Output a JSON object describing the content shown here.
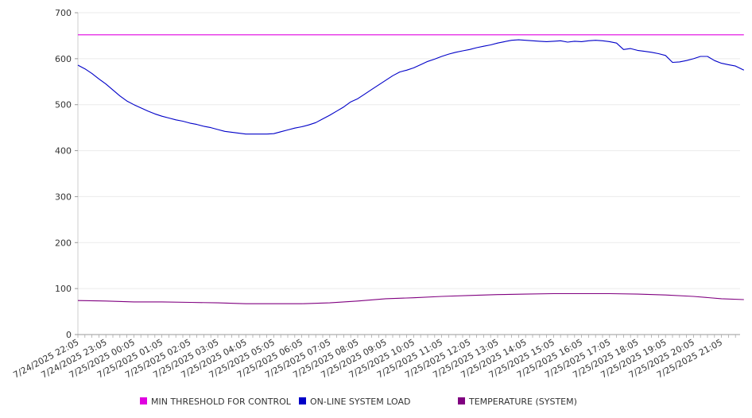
{
  "chart_data": {
    "type": "line",
    "title": "",
    "xlabel": "",
    "ylabel": "",
    "ylim": [
      0,
      700
    ],
    "yticks": [
      0,
      100,
      200,
      300,
      400,
      500,
      600,
      700
    ],
    "grid": true,
    "legend_position": "bottom",
    "x_labels": [
      "7/24/2025 22:05",
      "7/24/2025 23:05",
      "7/25/2025 00:05",
      "7/25/2025 01:05",
      "7/25/2025 02:05",
      "7/25/2025 03:05",
      "7/25/2025 04:05",
      "7/25/2025 05:05",
      "7/25/2025 06:05",
      "7/25/2025 07:05",
      "7/25/2025 08:05",
      "7/25/2025 09:05",
      "7/25/2025 10:05",
      "7/25/2025 11:05",
      "7/25/2025 12:05",
      "7/25/2025 13:05",
      "7/25/2025 14:05",
      "7/25/2025 15:05",
      "7/25/2025 16:05",
      "7/25/2025 17:05",
      "7/25/2025 18:05",
      "7/25/2025 19:05",
      "7/25/2025 20:05",
      "7/25/2025 21:05"
    ],
    "x_end_label_index": 23.8,
    "series": [
      {
        "name": "MIN THRESHOLD FOR CONTROL",
        "color": "#e000e0",
        "points": [
          [
            0,
            652
          ],
          [
            23.8,
            652
          ]
        ]
      },
      {
        "name": "ON-LINE SYSTEM LOAD",
        "color": "#0000c8",
        "points": [
          [
            0,
            586
          ],
          [
            0.25,
            578
          ],
          [
            0.5,
            568
          ],
          [
            0.75,
            556
          ],
          [
            1,
            545
          ],
          [
            1.25,
            532
          ],
          [
            1.5,
            519
          ],
          [
            1.75,
            508
          ],
          [
            2,
            500
          ],
          [
            2.25,
            493
          ],
          [
            2.5,
            486
          ],
          [
            2.75,
            480
          ],
          [
            3,
            475
          ],
          [
            3.25,
            471
          ],
          [
            3.5,
            467
          ],
          [
            3.75,
            464
          ],
          [
            4,
            460
          ],
          [
            4.25,
            457
          ],
          [
            4.5,
            453
          ],
          [
            4.75,
            450
          ],
          [
            5,
            446
          ],
          [
            5.25,
            442
          ],
          [
            5.5,
            440
          ],
          [
            5.75,
            438
          ],
          [
            6,
            436
          ],
          [
            6.25,
            436
          ],
          [
            6.5,
            436
          ],
          [
            6.75,
            436
          ],
          [
            7,
            437
          ],
          [
            7.25,
            441
          ],
          [
            7.5,
            445
          ],
          [
            7.75,
            449
          ],
          [
            8,
            452
          ],
          [
            8.25,
            456
          ],
          [
            8.5,
            461
          ],
          [
            8.75,
            469
          ],
          [
            9,
            477
          ],
          [
            9.25,
            486
          ],
          [
            9.5,
            495
          ],
          [
            9.75,
            506
          ],
          [
            10,
            513
          ],
          [
            10.25,
            523
          ],
          [
            10.5,
            533
          ],
          [
            10.75,
            543
          ],
          [
            11,
            553
          ],
          [
            11.25,
            563
          ],
          [
            11.5,
            571
          ],
          [
            11.75,
            575
          ],
          [
            12,
            580
          ],
          [
            12.25,
            587
          ],
          [
            12.5,
            594
          ],
          [
            12.75,
            599
          ],
          [
            13,
            605
          ],
          [
            13.25,
            610
          ],
          [
            13.5,
            614
          ],
          [
            13.75,
            617
          ],
          [
            14,
            620
          ],
          [
            14.25,
            624
          ],
          [
            14.5,
            627
          ],
          [
            14.75,
            630
          ],
          [
            15,
            634
          ],
          [
            15.25,
            637
          ],
          [
            15.5,
            640
          ],
          [
            15.75,
            641
          ],
          [
            16,
            640
          ],
          [
            16.25,
            639
          ],
          [
            16.5,
            638
          ],
          [
            16.75,
            637
          ],
          [
            17,
            638
          ],
          [
            17.25,
            639
          ],
          [
            17.5,
            636
          ],
          [
            17.75,
            638
          ],
          [
            18,
            637
          ],
          [
            18.25,
            639
          ],
          [
            18.5,
            640
          ],
          [
            18.75,
            639
          ],
          [
            19,
            637
          ],
          [
            19.25,
            634
          ],
          [
            19.5,
            620
          ],
          [
            19.75,
            622
          ],
          [
            20,
            618
          ],
          [
            20.25,
            616
          ],
          [
            20.5,
            614
          ],
          [
            20.75,
            611
          ],
          [
            21,
            607
          ],
          [
            21.25,
            592
          ],
          [
            21.5,
            593
          ],
          [
            21.75,
            596
          ],
          [
            22,
            600
          ],
          [
            22.25,
            605
          ],
          [
            22.5,
            605
          ],
          [
            22.75,
            596
          ],
          [
            23,
            590
          ],
          [
            23.25,
            587
          ],
          [
            23.5,
            584
          ],
          [
            23.8,
            575
          ]
        ]
      },
      {
        "name": "TEMPERATURE (SYSTEM)",
        "color": "#800080",
        "points": [
          [
            0,
            74
          ],
          [
            1,
            73
          ],
          [
            2,
            71
          ],
          [
            3,
            71
          ],
          [
            4,
            70
          ],
          [
            5,
            69
          ],
          [
            6,
            67
          ],
          [
            7,
            67
          ],
          [
            8,
            67
          ],
          [
            9,
            69
          ],
          [
            10,
            73
          ],
          [
            11,
            78
          ],
          [
            12,
            80
          ],
          [
            13,
            83
          ],
          [
            14,
            85
          ],
          [
            15,
            87
          ],
          [
            16,
            88
          ],
          [
            17,
            89
          ],
          [
            18,
            89
          ],
          [
            19,
            89
          ],
          [
            20,
            88
          ],
          [
            21,
            86
          ],
          [
            22,
            83
          ],
          [
            23,
            78
          ],
          [
            23.8,
            76
          ]
        ]
      }
    ]
  }
}
